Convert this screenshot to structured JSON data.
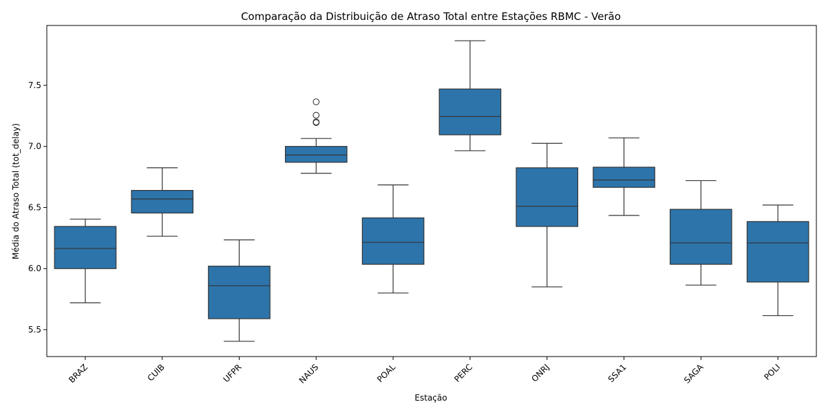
{
  "chart_data": {
    "type": "box",
    "title": "Comparação da Distribuição de Atraso Total entre Estações RBMC - Verão",
    "xlabel": "Estação",
    "ylabel": "Média do Atraso Total (tot_delay)",
    "ylim": [
      5.28,
      7.99
    ],
    "yticks": [
      "5.5",
      "6.0",
      "6.5",
      "7.0",
      "7.5"
    ],
    "grid": false,
    "box_color": "#2d74ab",
    "line_color": "#333333",
    "categories": [
      "BRAZ",
      "CUIB",
      "UFPR",
      "NAUS",
      "POAL",
      "PERC",
      "ONRJ",
      "SSA1",
      "SAGA",
      "POLI"
    ],
    "boxes": [
      {
        "whisker_low": 5.72,
        "q1": 6.0,
        "median": 6.165,
        "q3": 6.345,
        "whisker_high": 6.405,
        "outliers": []
      },
      {
        "whisker_low": 6.265,
        "q1": 6.455,
        "median": 6.57,
        "q3": 6.64,
        "whisker_high": 6.825,
        "outliers": []
      },
      {
        "whisker_low": 5.405,
        "q1": 5.59,
        "median": 5.86,
        "q3": 6.02,
        "whisker_high": 6.235,
        "outliers": []
      },
      {
        "whisker_low": 6.78,
        "q1": 6.87,
        "median": 6.93,
        "q3": 7.0,
        "whisker_high": 7.065,
        "outliers": [
          7.195,
          7.2,
          7.255,
          7.365
        ]
      },
      {
        "whisker_low": 5.8,
        "q1": 6.035,
        "median": 6.215,
        "q3": 6.415,
        "whisker_high": 6.685,
        "outliers": []
      },
      {
        "whisker_low": 6.965,
        "q1": 7.095,
        "median": 7.245,
        "q3": 7.47,
        "whisker_high": 7.865,
        "outliers": []
      },
      {
        "whisker_low": 5.85,
        "q1": 6.345,
        "median": 6.51,
        "q3": 6.825,
        "whisker_high": 7.025,
        "outliers": []
      },
      {
        "whisker_low": 6.435,
        "q1": 6.665,
        "median": 6.725,
        "q3": 6.83,
        "whisker_high": 7.07,
        "outliers": []
      },
      {
        "whisker_low": 5.865,
        "q1": 6.035,
        "median": 6.21,
        "q3": 6.485,
        "whisker_high": 6.72,
        "outliers": []
      },
      {
        "whisker_low": 5.615,
        "q1": 5.89,
        "median": 6.21,
        "q3": 6.385,
        "whisker_high": 6.52,
        "outliers": []
      }
    ]
  }
}
